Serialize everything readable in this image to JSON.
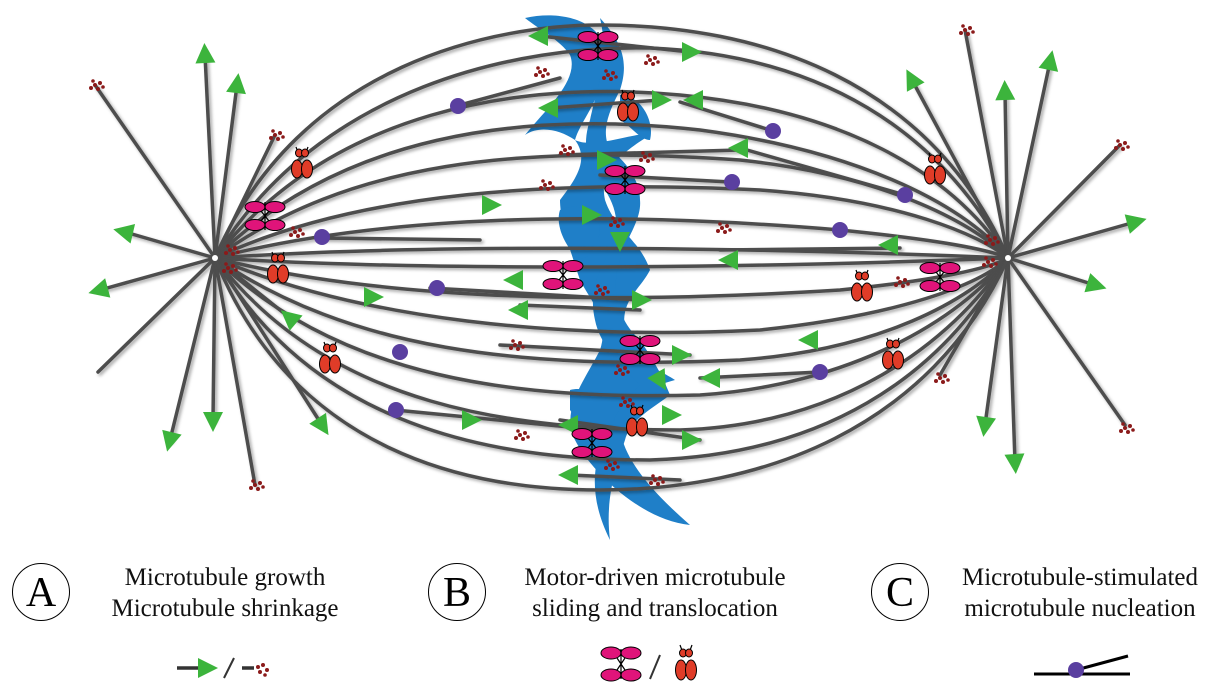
{
  "legend": [
    {
      "letter": "A",
      "lines": [
        "Microtubule growth",
        "Microtubule shrinkage"
      ],
      "icon": "growth-shrinkage-icon"
    },
    {
      "letter": "B",
      "lines": [
        "Motor-driven microtubule",
        "sliding and translocation"
      ],
      "icon": "kinesin-dynein-motor-icon"
    },
    {
      "letter": "C",
      "lines": [
        "Microtubule-stimulated",
        "microtubule nucleation"
      ],
      "icon": "branching-nucleation-icon"
    }
  ],
  "colors": {
    "microtubule": "#4d4d4d",
    "growth_arrow": "#3cb43c",
    "shrinkage_dots": "#8b1a1a",
    "chromosome": "#1f7fc8",
    "motor_bipolar": "#e0147a",
    "motor_dimer": "#e03c28",
    "nucleator": "#5a3fa0"
  }
}
